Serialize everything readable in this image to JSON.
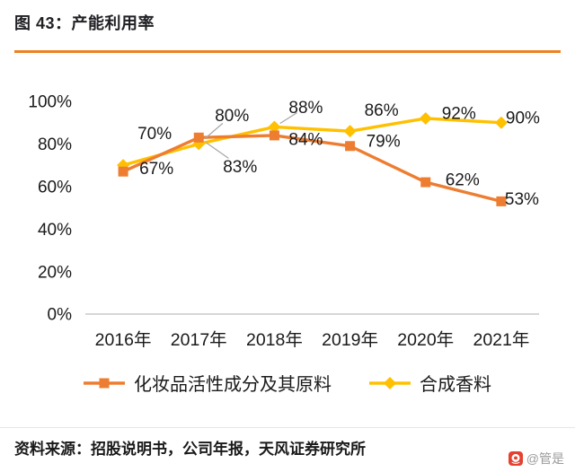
{
  "header": {
    "title": "图 43：产能利用率"
  },
  "colors": {
    "accent_rule": "#EE7F22",
    "axis_line": "#BFBFBF",
    "text": "#1A1A1A",
    "leader_line": "#A6A6A6",
    "watermark_text": "#9B9B9B",
    "watermark_logo": "#E6402F"
  },
  "chart_data": {
    "type": "line",
    "title": "产能利用率",
    "categories": [
      "2016年",
      "2017年",
      "2018年",
      "2019年",
      "2020年",
      "2021年"
    ],
    "series": [
      {
        "name": "化妆品活性成分及其原料",
        "color": "#ED7D31",
        "marker": "square",
        "values": [
          67,
          83,
          84,
          79,
          62,
          53
        ],
        "labels": [
          "67%",
          "83%",
          "84%",
          "79%",
          "62%",
          "53%"
        ],
        "label_offsets": [
          [
            37,
            -4
          ],
          [
            46,
            32
          ],
          [
            35,
            4
          ],
          [
            37,
            -6
          ],
          [
            41,
            -3
          ],
          [
            23,
            -3
          ]
        ]
      },
      {
        "name": "合成香料",
        "color": "#FFC000",
        "marker": "diamond",
        "values": [
          70,
          80,
          88,
          86,
          92,
          90
        ],
        "labels": [
          "70%",
          "80%",
          "88%",
          "86%",
          "92%",
          "90%"
        ],
        "label_offsets": [
          [
            35,
            -36
          ],
          [
            37,
            -32
          ],
          [
            35,
            -22
          ],
          [
            35,
            -24
          ],
          [
            37,
            -6
          ],
          [
            24,
            -6
          ]
        ]
      }
    ],
    "ylim": [
      0,
      100
    ],
    "ytick_values": [
      0,
      20,
      40,
      60,
      80,
      100
    ],
    "ytick_labels": [
      "0%",
      "20%",
      "40%",
      "60%",
      "80%",
      "100%"
    ],
    "xlabel": "",
    "ylabel": "",
    "grid": false,
    "legend_position": "bottom",
    "leader_lines": [
      {
        "series": 1,
        "point": 1
      },
      {
        "series": 0,
        "point": 1
      },
      {
        "series": 1,
        "point": 2
      }
    ]
  },
  "footer": {
    "source": "资料来源：招股说明书，公司年报，天风证券研究所",
    "watermark": "@管是"
  }
}
